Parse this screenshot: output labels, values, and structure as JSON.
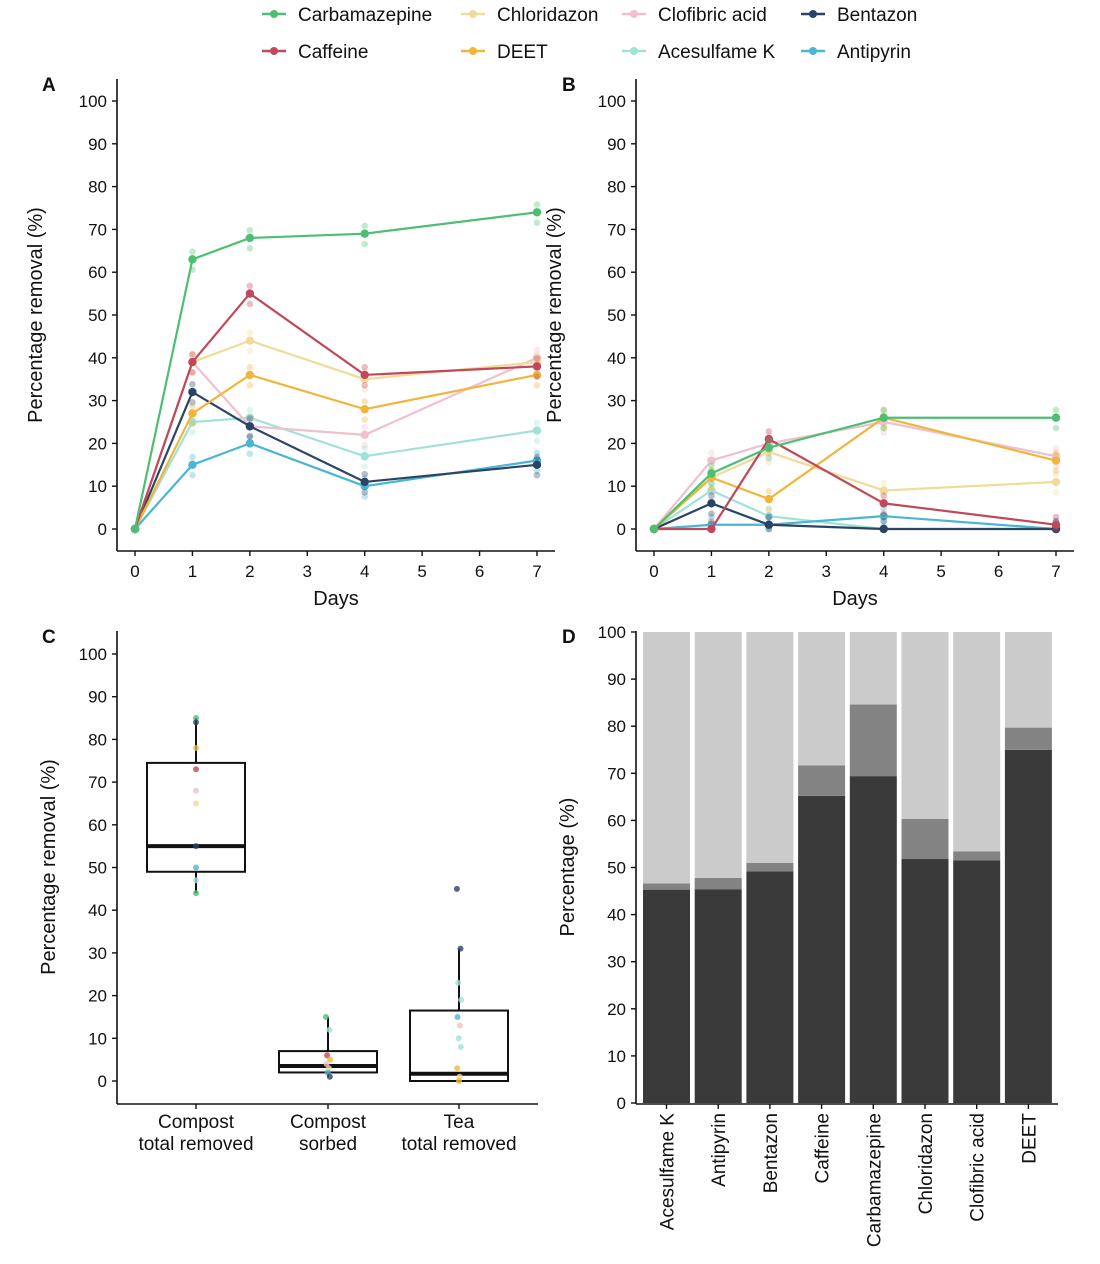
{
  "compounds": [
    {
      "name": "Carbamazepine",
      "color": "#4cbf72"
    },
    {
      "name": "Caffeine",
      "color": "#c0485a"
    },
    {
      "name": "Chloridazon",
      "color": "#f0dc9a"
    },
    {
      "name": "DEET",
      "color": "#f1b53c"
    },
    {
      "name": "Clofibric acid",
      "color": "#f0c0cc"
    },
    {
      "name": "Acesulfame K",
      "color": "#a0e1d8"
    },
    {
      "name": "Bentazon",
      "color": "#2b4466"
    },
    {
      "name": "Antipyrin",
      "color": "#4ab6d3"
    }
  ],
  "chart_data": [
    {
      "panel": "A",
      "type": "line",
      "xlabel": "Days",
      "ylabel": "Percentage removal (%)",
      "xlim": [
        0,
        7
      ],
      "ylim": [
        0,
        100
      ],
      "xticks": [
        "0",
        "1",
        "2",
        "3",
        "4",
        "5",
        "6",
        "7"
      ],
      "yticks": [
        "0",
        "10",
        "20",
        "30",
        "40",
        "50",
        "60",
        "70",
        "80",
        "90",
        "100"
      ],
      "x": [
        0,
        1,
        2,
        4,
        7
      ],
      "series": [
        {
          "name": "Acesulfame K",
          "values": [
            0,
            25,
            26,
            17,
            23
          ]
        },
        {
          "name": "Clofibric acid",
          "values": [
            0,
            39,
            24,
            22,
            40
          ]
        },
        {
          "name": "Chloridazon",
          "values": [
            0,
            39,
            44,
            35,
            39
          ]
        },
        {
          "name": "Antipyrin",
          "values": [
            0,
            15,
            20,
            10,
            16
          ]
        },
        {
          "name": "Bentazon",
          "values": [
            0,
            32,
            24,
            11,
            15
          ]
        },
        {
          "name": "DEET",
          "values": [
            0,
            27,
            36,
            28,
            36
          ]
        },
        {
          "name": "Caffeine",
          "values": [
            0,
            39,
            55,
            36,
            38
          ]
        },
        {
          "name": "Carbamazepine",
          "values": [
            0,
            63,
            68,
            69,
            74
          ]
        }
      ]
    },
    {
      "panel": "B",
      "type": "line",
      "xlabel": "Days",
      "ylabel": "Percentage removal (%)",
      "xlim": [
        0,
        7
      ],
      "ylim": [
        0,
        100
      ],
      "xticks": [
        "0",
        "1",
        "2",
        "3",
        "4",
        "5",
        "6",
        "7"
      ],
      "yticks": [
        "0",
        "10",
        "20",
        "30",
        "40",
        "50",
        "60",
        "70",
        "80",
        "90",
        "100"
      ],
      "x": [
        0,
        1,
        2,
        4,
        7
      ],
      "series": [
        {
          "name": "Acesulfame K",
          "values": [
            0,
            9,
            3,
            0,
            0
          ]
        },
        {
          "name": "Clofibric acid",
          "values": [
            0,
            16,
            20,
            25,
            17
          ]
        },
        {
          "name": "Chloridazon",
          "values": [
            0,
            12,
            18,
            9,
            11
          ]
        },
        {
          "name": "Antipyrin",
          "values": [
            0,
            1,
            1,
            3,
            0
          ]
        },
        {
          "name": "Bentazon",
          "values": [
            0,
            6,
            1,
            0,
            0
          ]
        },
        {
          "name": "DEET",
          "values": [
            0,
            12,
            7,
            26,
            16
          ]
        },
        {
          "name": "Caffeine",
          "values": [
            0,
            0,
            21,
            6,
            1
          ]
        },
        {
          "name": "Carbamazepine",
          "values": [
            0,
            13,
            19,
            26,
            26
          ]
        }
      ]
    },
    {
      "panel": "C",
      "type": "box",
      "ylabel": "Percentage removal (%)",
      "ylim": [
        0,
        100
      ],
      "yticks": [
        "0",
        "10",
        "20",
        "30",
        "40",
        "50",
        "60",
        "70",
        "80",
        "90",
        "100"
      ],
      "categories": [
        [
          "Compost",
          "total removed"
        ],
        [
          "Compost",
          "sorbed"
        ],
        [
          "Tea",
          "total removed"
        ]
      ],
      "boxes": [
        {
          "min": 44,
          "q1": 49,
          "median": 55,
          "q3": 74.5,
          "max": 85
        },
        {
          "min": 1,
          "q1": 2,
          "median": 3.5,
          "q3": 7,
          "max": 15
        },
        {
          "min": 0,
          "q1": 0,
          "median": 1.7,
          "q3": 16.5,
          "max": 31
        }
      ],
      "points": [
        [
          {
            "name": "Carbamazepine",
            "v": 85
          },
          {
            "name": "Bentazon",
            "v": 84
          },
          {
            "name": "DEET",
            "v": 78
          },
          {
            "name": "Caffeine",
            "v": 73
          },
          {
            "name": "Clofibric acid",
            "v": 68
          },
          {
            "name": "Chloridazon",
            "v": 65
          },
          {
            "name": "Bentazon",
            "v": 55
          },
          {
            "name": "Antipyrin",
            "v": 50
          },
          {
            "name": "Acesulfame K",
            "v": 47
          },
          {
            "name": "Carbamazepine",
            "v": 44
          }
        ],
        [
          {
            "name": "Carbamazepine",
            "v": 15
          },
          {
            "name": "Acesulfame K",
            "v": 12
          },
          {
            "name": "Caffeine",
            "v": 6
          },
          {
            "name": "DEET",
            "v": 5
          },
          {
            "name": "Clofibric acid",
            "v": 4
          },
          {
            "name": "Chloridazon",
            "v": 3
          },
          {
            "name": "Antipyrin",
            "v": 2
          },
          {
            "name": "Bentazon",
            "v": 1
          }
        ],
        [
          {
            "name": "Bentazon",
            "v": 45
          },
          {
            "name": "Bentazon",
            "v": 31
          },
          {
            "name": "Acesulfame K",
            "v": 23
          },
          {
            "name": "Acesulfame K",
            "v": 19
          },
          {
            "name": "Antipyrin",
            "v": 15
          },
          {
            "name": "Clofibric acid",
            "v": 13
          },
          {
            "name": "Acesulfame K",
            "v": 10
          },
          {
            "name": "Acesulfame K",
            "v": 8
          },
          {
            "name": "DEET",
            "v": 3
          },
          {
            "name": "Chloridazon",
            "v": 1
          },
          {
            "name": "DEET",
            "v": 0
          }
        ]
      ]
    },
    {
      "panel": "D",
      "type": "stacked-bar",
      "ylabel": "Percentage (%)",
      "ylim": [
        0,
        100
      ],
      "yticks": [
        "0",
        "10",
        "20",
        "30",
        "40",
        "50",
        "60",
        "70",
        "80",
        "90",
        "100"
      ],
      "categories": [
        "Acesulfame K",
        "Antipyrin",
        "Bentazon",
        "Caffeine",
        "Carbamazepine",
        "Chloridazon",
        "Clofibric acid",
        "DEET"
      ],
      "series": [
        {
          "name": "bottom",
          "color": "#3a3a3a",
          "values": [
            45.3,
            45.4,
            49.2,
            65.2,
            69.4,
            51.8,
            51.5,
            75.0
          ]
        },
        {
          "name": "middle",
          "color": "#838383",
          "values": [
            1.3,
            2.4,
            1.8,
            6.5,
            15.2,
            8.5,
            1.9,
            4.7
          ]
        },
        {
          "name": "top",
          "color": "#cbcbcb",
          "values": [
            53.4,
            52.2,
            49.0,
            28.3,
            15.4,
            39.7,
            46.6,
            20.3
          ]
        }
      ]
    }
  ]
}
